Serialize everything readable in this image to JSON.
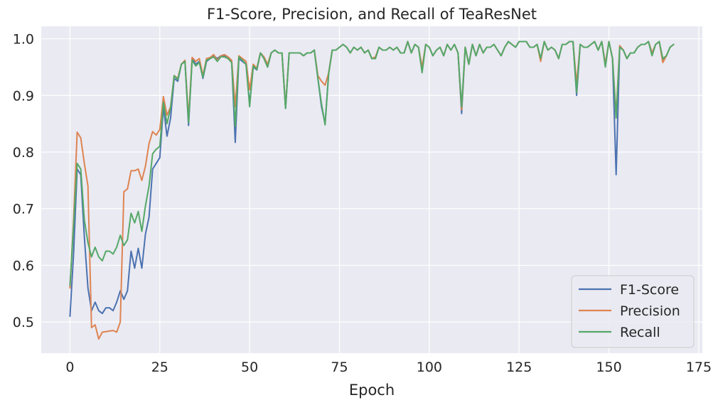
{
  "chart_data": {
    "type": "line",
    "title": "F1-Score, Precision, and Recall of TeaResNet",
    "xlabel": "Epoch",
    "ylabel": "",
    "xlim": [
      -8,
      176
    ],
    "ylim": [
      0.445,
      1.022
    ],
    "xticks": [
      0,
      25,
      50,
      75,
      100,
      125,
      150,
      175
    ],
    "yticks": [
      0.5,
      0.6,
      0.7,
      0.8,
      0.9,
      1.0
    ],
    "ytick_labels": [
      "0.5",
      "0.6",
      "0.7",
      "0.8",
      "0.9",
      "1.0"
    ],
    "grid": true,
    "legend_position": "bottom-right",
    "background": "#eaeaf2",
    "x": [
      0,
      1,
      2,
      3,
      4,
      5,
      6,
      7,
      8,
      9,
      10,
      11,
      12,
      13,
      14,
      15,
      16,
      17,
      18,
      19,
      20,
      21,
      22,
      23,
      24,
      25,
      26,
      27,
      28,
      29,
      30,
      31,
      32,
      33,
      34,
      35,
      36,
      37,
      38,
      39,
      40,
      41,
      42,
      43,
      44,
      45,
      46,
      47,
      48,
      49,
      50,
      51,
      52,
      53,
      54,
      55,
      56,
      57,
      58,
      59,
      60,
      61,
      62,
      63,
      64,
      65,
      66,
      67,
      68,
      69,
      70,
      71,
      72,
      73,
      74,
      75,
      76,
      77,
      78,
      79,
      80,
      81,
      82,
      83,
      84,
      85,
      86,
      87,
      88,
      89,
      90,
      91,
      92,
      93,
      94,
      95,
      96,
      97,
      98,
      99,
      100,
      101,
      102,
      103,
      104,
      105,
      106,
      107,
      108,
      109,
      110,
      111,
      112,
      113,
      114,
      115,
      116,
      117,
      118,
      119,
      120,
      121,
      122,
      123,
      124,
      125,
      126,
      127,
      128,
      129,
      130,
      131,
      132,
      133,
      134,
      135,
      136,
      137,
      138,
      139,
      140,
      141,
      142,
      143,
      144,
      145,
      146,
      147,
      148,
      149,
      150,
      151,
      152,
      153,
      154,
      155,
      156,
      157,
      158,
      159,
      160,
      161,
      162,
      163,
      164,
      165,
      166,
      167,
      168
    ],
    "series": [
      {
        "name": "F1-Score",
        "color": "#4c72b0",
        "values": [
          0.51,
          0.62,
          0.77,
          0.76,
          0.65,
          0.56,
          0.52,
          0.535,
          0.52,
          0.515,
          0.525,
          0.525,
          0.52,
          0.535,
          0.555,
          0.54,
          0.555,
          0.625,
          0.595,
          0.63,
          0.595,
          0.655,
          0.685,
          0.77,
          0.78,
          0.79,
          0.88,
          0.828,
          0.86,
          0.93,
          0.925,
          0.955,
          0.96,
          0.847,
          0.965,
          0.955,
          0.96,
          0.93,
          0.96,
          0.965,
          0.97,
          0.965,
          0.97,
          0.97,
          0.965,
          0.96,
          0.817,
          0.965,
          0.96,
          0.955,
          0.885,
          0.95,
          0.945,
          0.975,
          0.965,
          0.95,
          0.975,
          0.98,
          0.975,
          0.975,
          0.877,
          0.975,
          0.975,
          0.975,
          0.975,
          0.97,
          0.975,
          0.975,
          0.98,
          0.93,
          0.88,
          0.85,
          0.94,
          0.98,
          0.98,
          0.985,
          0.99,
          0.985,
          0.975,
          0.985,
          0.98,
          0.985,
          0.975,
          0.98,
          0.965,
          0.965,
          0.985,
          0.98,
          0.98,
          0.985,
          0.98,
          0.985,
          0.975,
          0.975,
          0.995,
          0.975,
          0.99,
          0.985,
          0.945,
          0.99,
          0.985,
          0.97,
          0.98,
          0.985,
          0.97,
          0.99,
          0.98,
          0.99,
          0.975,
          0.868,
          0.985,
          0.955,
          0.99,
          0.97,
          0.99,
          0.975,
          0.985,
          0.985,
          0.99,
          0.98,
          0.97,
          0.985,
          0.995,
          0.99,
          0.985,
          0.995,
          0.995,
          0.995,
          0.985,
          0.985,
          0.99,
          0.965,
          0.995,
          0.98,
          0.985,
          0.98,
          0.965,
          0.99,
          0.99,
          0.995,
          0.995,
          0.9,
          0.99,
          0.985,
          0.985,
          0.99,
          0.995,
          0.98,
          0.995,
          0.955,
          0.995,
          0.965,
          0.76,
          0.985,
          0.98,
          0.965,
          0.975,
          0.975,
          0.985,
          0.99,
          0.99,
          0.995,
          0.975,
          0.99,
          0.995,
          0.96,
          0.97,
          0.985,
          0.99
        ]
      },
      {
        "name": "Precision",
        "color": "#dd8452",
        "values": [
          0.56,
          0.68,
          0.835,
          0.825,
          0.78,
          0.74,
          0.49,
          0.495,
          0.47,
          0.482,
          0.483,
          0.484,
          0.485,
          0.482,
          0.5,
          0.73,
          0.735,
          0.767,
          0.767,
          0.77,
          0.75,
          0.775,
          0.815,
          0.836,
          0.83,
          0.84,
          0.898,
          0.865,
          0.88,
          0.935,
          0.93,
          0.955,
          0.962,
          0.86,
          0.967,
          0.96,
          0.965,
          0.935,
          0.965,
          0.967,
          0.972,
          0.962,
          0.97,
          0.972,
          0.968,
          0.962,
          0.88,
          0.97,
          0.965,
          0.96,
          0.91,
          0.955,
          0.948,
          0.975,
          0.968,
          0.955,
          0.975,
          0.98,
          0.975,
          0.975,
          0.88,
          0.975,
          0.975,
          0.975,
          0.975,
          0.97,
          0.975,
          0.975,
          0.98,
          0.935,
          0.925,
          0.918,
          0.94,
          0.98,
          0.98,
          0.985,
          0.99,
          0.985,
          0.975,
          0.985,
          0.98,
          0.985,
          0.975,
          0.98,
          0.965,
          0.968,
          0.985,
          0.98,
          0.98,
          0.985,
          0.98,
          0.985,
          0.975,
          0.975,
          0.995,
          0.975,
          0.99,
          0.985,
          0.95,
          0.99,
          0.985,
          0.97,
          0.98,
          0.985,
          0.97,
          0.99,
          0.98,
          0.99,
          0.975,
          0.875,
          0.985,
          0.955,
          0.99,
          0.97,
          0.99,
          0.975,
          0.985,
          0.985,
          0.99,
          0.98,
          0.97,
          0.985,
          0.995,
          0.99,
          0.985,
          0.995,
          0.995,
          0.995,
          0.985,
          0.985,
          0.99,
          0.96,
          0.995,
          0.98,
          0.985,
          0.98,
          0.965,
          0.99,
          0.99,
          0.995,
          0.995,
          0.92,
          0.99,
          0.985,
          0.985,
          0.99,
          0.995,
          0.98,
          0.995,
          0.955,
          0.995,
          0.965,
          0.865,
          0.988,
          0.98,
          0.965,
          0.975,
          0.975,
          0.985,
          0.99,
          0.99,
          0.995,
          0.975,
          0.99,
          0.995,
          0.958,
          0.97,
          0.985,
          0.99
        ]
      },
      {
        "name": "Recall",
        "color": "#55a868",
        "values": [
          0.565,
          0.67,
          0.78,
          0.77,
          0.68,
          0.64,
          0.615,
          0.632,
          0.615,
          0.608,
          0.625,
          0.625,
          0.62,
          0.632,
          0.653,
          0.635,
          0.645,
          0.692,
          0.675,
          0.695,
          0.66,
          0.705,
          0.74,
          0.797,
          0.805,
          0.81,
          0.888,
          0.85,
          0.878,
          0.935,
          0.928,
          0.955,
          0.96,
          0.852,
          0.962,
          0.952,
          0.958,
          0.932,
          0.962,
          0.965,
          0.968,
          0.96,
          0.968,
          0.968,
          0.965,
          0.958,
          0.845,
          0.968,
          0.962,
          0.955,
          0.88,
          0.952,
          0.946,
          0.975,
          0.965,
          0.95,
          0.975,
          0.98,
          0.975,
          0.975,
          0.877,
          0.975,
          0.975,
          0.975,
          0.975,
          0.97,
          0.975,
          0.975,
          0.98,
          0.93,
          0.885,
          0.848,
          0.938,
          0.98,
          0.98,
          0.985,
          0.99,
          0.985,
          0.975,
          0.985,
          0.98,
          0.985,
          0.975,
          0.98,
          0.965,
          0.965,
          0.985,
          0.98,
          0.98,
          0.985,
          0.98,
          0.985,
          0.975,
          0.975,
          0.995,
          0.975,
          0.99,
          0.985,
          0.94,
          0.99,
          0.985,
          0.97,
          0.98,
          0.985,
          0.97,
          0.99,
          0.98,
          0.99,
          0.975,
          0.88,
          0.985,
          0.955,
          0.99,
          0.97,
          0.99,
          0.975,
          0.985,
          0.985,
          0.99,
          0.98,
          0.97,
          0.985,
          0.995,
          0.99,
          0.985,
          0.995,
          0.995,
          0.995,
          0.985,
          0.985,
          0.99,
          0.965,
          0.995,
          0.98,
          0.985,
          0.98,
          0.965,
          0.99,
          0.99,
          0.995,
          0.995,
          0.905,
          0.99,
          0.985,
          0.985,
          0.99,
          0.995,
          0.98,
          0.995,
          0.95,
          0.995,
          0.965,
          0.86,
          0.985,
          0.98,
          0.965,
          0.975,
          0.975,
          0.985,
          0.99,
          0.99,
          0.995,
          0.97,
          0.99,
          0.995,
          0.965,
          0.97,
          0.985,
          0.99
        ]
      }
    ]
  }
}
